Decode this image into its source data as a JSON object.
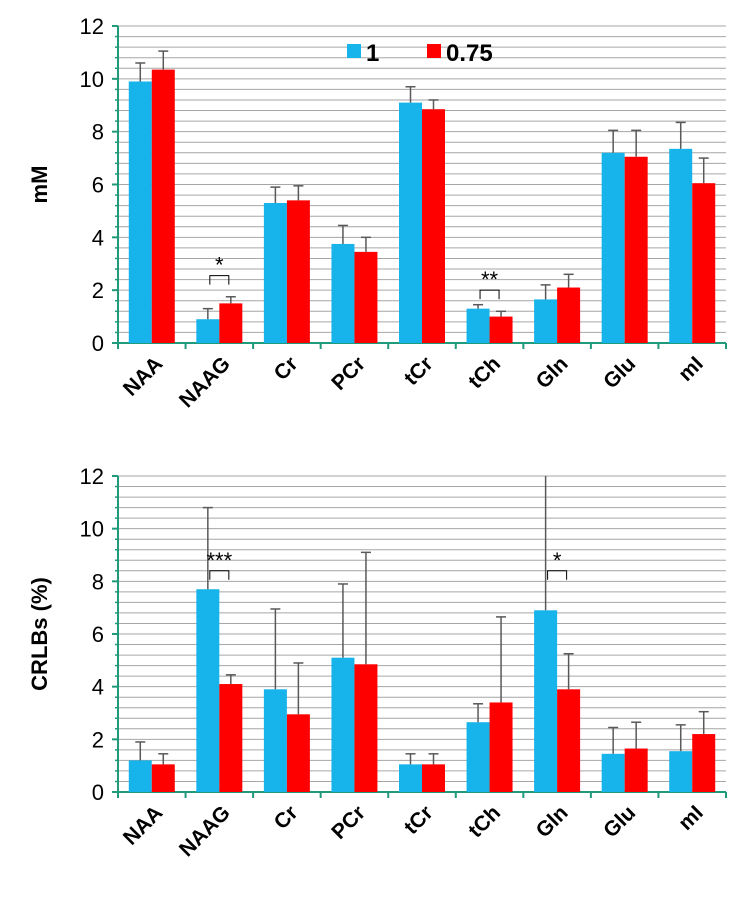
{
  "colors": {
    "series1": "#16b4ea",
    "series2": "#ff0000",
    "grid": "#a6a6a6",
    "axis": "#1f9a7a",
    "error": "#595959"
  },
  "chart_data": [
    {
      "type": "bar",
      "ylabel": "mM",
      "ylim": [
        0,
        12
      ],
      "yticks": [
        0,
        2,
        4,
        6,
        8,
        10,
        12
      ],
      "grid_minor_step": 0.4,
      "legend": "top",
      "categories": [
        "NAA",
        "NAAG",
        "Cr",
        "PCr",
        "tCr",
        "tCh",
        "Gln",
        "Glu",
        "mI"
      ],
      "series": [
        {
          "name": "1",
          "values": [
            9.9,
            0.9,
            5.3,
            3.75,
            9.1,
            1.3,
            1.65,
            7.2,
            7.35
          ],
          "errors": [
            0.7,
            0.4,
            0.6,
            0.7,
            0.6,
            0.15,
            0.55,
            0.85,
            1.0
          ]
        },
        {
          "name": "0.75",
          "values": [
            10.35,
            1.5,
            5.4,
            3.45,
            8.85,
            1.0,
            2.1,
            7.05,
            6.05
          ],
          "errors": [
            0.7,
            0.25,
            0.55,
            0.55,
            0.35,
            0.2,
            0.5,
            1.0,
            0.95
          ]
        }
      ],
      "annotations": [
        {
          "category": "NAAG",
          "text": "*",
          "bracket_y": 2.55
        },
        {
          "category": "tCh",
          "text": "**",
          "bracket_y": 2.0
        }
      ]
    },
    {
      "type": "bar",
      "ylabel": "CRLBs (%)",
      "ylim": [
        0,
        12
      ],
      "yticks": [
        0,
        2,
        4,
        6,
        8,
        10,
        12
      ],
      "grid_minor_step": 0.4,
      "categories": [
        "NAA",
        "NAAG",
        "Cr",
        "PCr",
        "tCr",
        "tCh",
        "Gln",
        "Glu",
        "mI"
      ],
      "series": [
        {
          "name": "1",
          "values": [
            1.2,
            7.7,
            3.9,
            5.1,
            1.05,
            2.65,
            6.9,
            1.45,
            1.55
          ],
          "errors": [
            0.7,
            3.1,
            3.05,
            2.8,
            0.4,
            0.7,
            5.2,
            1.0,
            1.0
          ]
        },
        {
          "name": "0.75",
          "values": [
            1.05,
            4.1,
            2.95,
            4.85,
            1.05,
            3.4,
            3.9,
            1.65,
            2.2
          ],
          "errors": [
            0.4,
            0.35,
            1.95,
            4.25,
            0.4,
            3.25,
            1.35,
            1.0,
            0.85
          ]
        }
      ],
      "annotations": [
        {
          "category": "NAAG",
          "text": "***",
          "bracket_y": 8.4
        },
        {
          "category": "Gln",
          "text": "*",
          "bracket_y": 8.4
        }
      ]
    }
  ]
}
